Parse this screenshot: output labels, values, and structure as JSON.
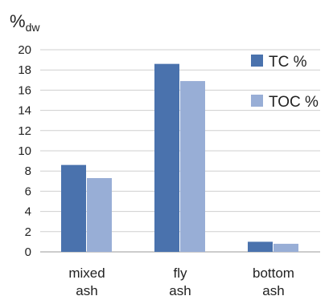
{
  "chart_data": {
    "type": "bar",
    "ylabel": "%",
    "ylabel_sub": "dw",
    "ylim": [
      0,
      20
    ],
    "yticks": [
      0,
      2,
      4,
      6,
      8,
      10,
      12,
      14,
      16,
      18,
      20
    ],
    "grid": true,
    "legend_position": "top-right",
    "categories": [
      [
        "mixed",
        "ash"
      ],
      [
        "fly",
        "ash"
      ],
      [
        "bottom",
        "ash"
      ]
    ],
    "series": [
      {
        "name": "TC %",
        "color": "#4a72ad",
        "values": [
          8.6,
          18.6,
          1.0
        ]
      },
      {
        "name": "TOC %",
        "color": "#98aed6",
        "values": [
          7.3,
          16.9,
          0.8
        ]
      }
    ]
  }
}
